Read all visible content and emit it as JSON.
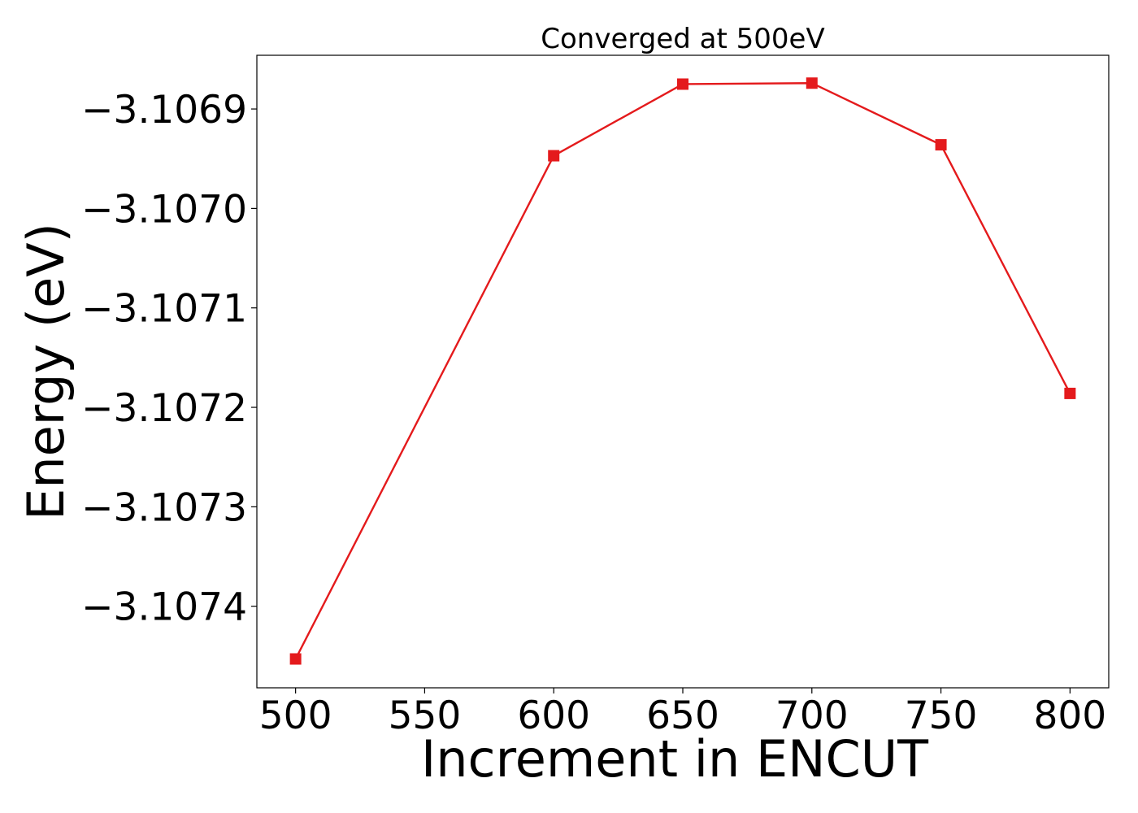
{
  "chart_data": {
    "type": "line",
    "title": "Converged at 500eV",
    "xlabel": "Increment in ENCUT",
    "ylabel": "Energy (eV)",
    "x": [
      500,
      600,
      650,
      700,
      750,
      800
    ],
    "series": [
      {
        "values": [
          -3.107453,
          -3.106947,
          -3.106875,
          -3.106874,
          -3.106936,
          -3.107186
        ],
        "color": "#e41a1c",
        "marker": "square"
      }
    ],
    "xlim": [
      485,
      815
    ],
    "ylim": [
      -3.107482,
      -3.106846
    ],
    "xticks": [
      500,
      550,
      600,
      650,
      700,
      750,
      800
    ],
    "xtick_labels": [
      "500",
      "550",
      "600",
      "650",
      "700",
      "750",
      "800"
    ],
    "yticks": [
      -3.1069,
      -3.107,
      -3.1071,
      -3.1072,
      -3.1073,
      -3.1074
    ],
    "ytick_labels": [
      "−3.1069",
      "−3.1070",
      "−3.1071",
      "−3.1072",
      "−3.1073",
      "−3.1074"
    ],
    "grid": false,
    "legend": "none"
  }
}
